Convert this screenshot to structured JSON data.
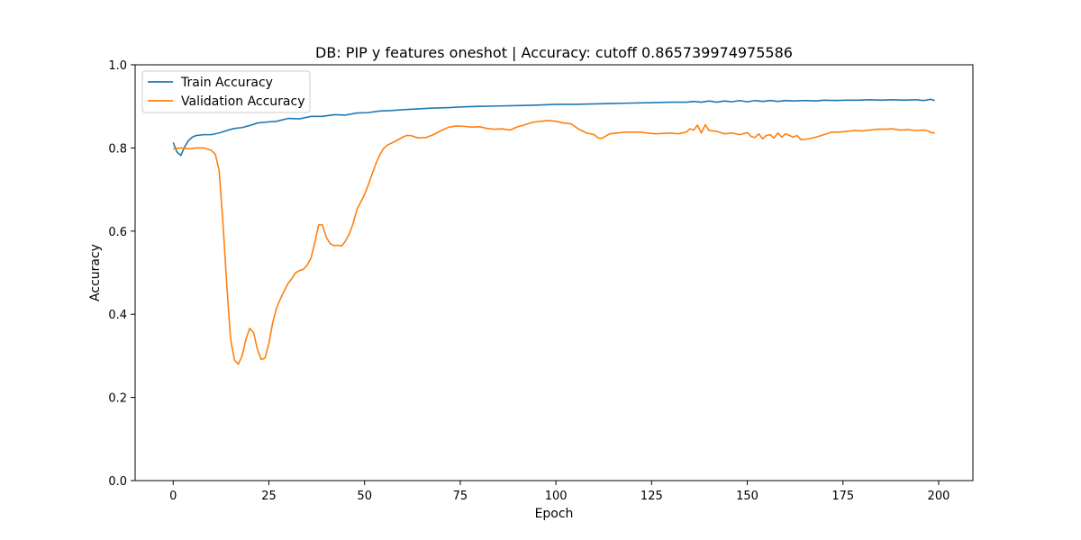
{
  "chart_data": {
    "type": "line",
    "title": "DB: PIP y features oneshot | Accuracy: cutoff 0.865739974975586",
    "xlabel": "Epoch",
    "ylabel": "Accuracy",
    "xlim": [
      -9.95,
      208.95
    ],
    "ylim": [
      0.0,
      1.0
    ],
    "xticks": [
      0,
      25,
      50,
      75,
      100,
      125,
      150,
      175,
      200
    ],
    "yticks": [
      0.0,
      0.2,
      0.4,
      0.6,
      0.8,
      1.0
    ],
    "grid": false,
    "legend_position": "top-left",
    "series": [
      {
        "name": "Train Accuracy",
        "color": "#1f77b4",
        "points": [
          [
            0,
            0.813
          ],
          [
            1,
            0.79
          ],
          [
            2,
            0.782
          ],
          [
            3,
            0.803
          ],
          [
            4,
            0.818
          ],
          [
            5,
            0.826
          ],
          [
            6,
            0.83
          ],
          [
            8,
            0.832
          ],
          [
            10,
            0.832
          ],
          [
            12,
            0.836
          ],
          [
            14,
            0.842
          ],
          [
            16,
            0.847
          ],
          [
            18,
            0.849
          ],
          [
            20,
            0.854
          ],
          [
            22,
            0.86
          ],
          [
            24,
            0.862
          ],
          [
            27,
            0.864
          ],
          [
            30,
            0.871
          ],
          [
            33,
            0.87
          ],
          [
            36,
            0.876
          ],
          [
            39,
            0.876
          ],
          [
            42,
            0.88
          ],
          [
            45,
            0.879
          ],
          [
            48,
            0.884
          ],
          [
            51,
            0.885
          ],
          [
            54,
            0.889
          ],
          [
            57,
            0.89
          ],
          [
            60,
            0.892
          ],
          [
            64,
            0.894
          ],
          [
            68,
            0.896
          ],
          [
            72,
            0.897
          ],
          [
            76,
            0.899
          ],
          [
            80,
            0.9
          ],
          [
            85,
            0.901
          ],
          [
            90,
            0.902
          ],
          [
            95,
            0.903
          ],
          [
            100,
            0.905
          ],
          [
            105,
            0.905
          ],
          [
            110,
            0.906
          ],
          [
            115,
            0.907
          ],
          [
            120,
            0.908
          ],
          [
            125,
            0.909
          ],
          [
            130,
            0.91
          ],
          [
            134,
            0.91
          ],
          [
            136,
            0.912
          ],
          [
            138,
            0.91
          ],
          [
            140,
            0.913
          ],
          [
            142,
            0.91
          ],
          [
            144,
            0.913
          ],
          [
            146,
            0.911
          ],
          [
            148,
            0.914
          ],
          [
            150,
            0.911
          ],
          [
            152,
            0.914
          ],
          [
            154,
            0.912
          ],
          [
            156,
            0.914
          ],
          [
            158,
            0.912
          ],
          [
            160,
            0.914
          ],
          [
            162,
            0.913
          ],
          [
            165,
            0.914
          ],
          [
            168,
            0.913
          ],
          [
            170,
            0.915
          ],
          [
            173,
            0.914
          ],
          [
            176,
            0.915
          ],
          [
            179,
            0.915
          ],
          [
            182,
            0.916
          ],
          [
            185,
            0.915
          ],
          [
            188,
            0.916
          ],
          [
            191,
            0.915
          ],
          [
            194,
            0.916
          ],
          [
            196,
            0.914
          ],
          [
            198,
            0.917
          ],
          [
            199,
            0.914
          ]
        ]
      },
      {
        "name": "Validation Accuracy",
        "color": "#ff7f0e",
        "points": [
          [
            0,
            0.798
          ],
          [
            2,
            0.8
          ],
          [
            4,
            0.798
          ],
          [
            6,
            0.8
          ],
          [
            8,
            0.8
          ],
          [
            10,
            0.794
          ],
          [
            11,
            0.785
          ],
          [
            12,
            0.745
          ],
          [
            13,
            0.62
          ],
          [
            14,
            0.47
          ],
          [
            15,
            0.34
          ],
          [
            16,
            0.29
          ],
          [
            17,
            0.28
          ],
          [
            18,
            0.3
          ],
          [
            19,
            0.34
          ],
          [
            20,
            0.366
          ],
          [
            21,
            0.356
          ],
          [
            22,
            0.316
          ],
          [
            23,
            0.291
          ],
          [
            24,
            0.295
          ],
          [
            25,
            0.33
          ],
          [
            26,
            0.38
          ],
          [
            27,
            0.415
          ],
          [
            28,
            0.437
          ],
          [
            29,
            0.456
          ],
          [
            30,
            0.474
          ],
          [
            31,
            0.486
          ],
          [
            32,
            0.5
          ],
          [
            33,
            0.505
          ],
          [
            34,
            0.508
          ],
          [
            35,
            0.518
          ],
          [
            36,
            0.535
          ],
          [
            37,
            0.572
          ],
          [
            38,
            0.615
          ],
          [
            39,
            0.615
          ],
          [
            40,
            0.585
          ],
          [
            41,
            0.57
          ],
          [
            42,
            0.565
          ],
          [
            43,
            0.566
          ],
          [
            44,
            0.564
          ],
          [
            45,
            0.576
          ],
          [
            46,
            0.593
          ],
          [
            47,
            0.618
          ],
          [
            48,
            0.652
          ],
          [
            49,
            0.67
          ],
          [
            50,
            0.688
          ],
          [
            51,
            0.712
          ],
          [
            52,
            0.738
          ],
          [
            53,
            0.763
          ],
          [
            54,
            0.784
          ],
          [
            55,
            0.799
          ],
          [
            56,
            0.807
          ],
          [
            58,
            0.816
          ],
          [
            60,
            0.826
          ],
          [
            61,
            0.83
          ],
          [
            62,
            0.83
          ],
          [
            64,
            0.824
          ],
          [
            66,
            0.825
          ],
          [
            68,
            0.832
          ],
          [
            70,
            0.842
          ],
          [
            72,
            0.85
          ],
          [
            74,
            0.853
          ],
          [
            76,
            0.852
          ],
          [
            78,
            0.85
          ],
          [
            80,
            0.851
          ],
          [
            82,
            0.847
          ],
          [
            84,
            0.845
          ],
          [
            86,
            0.846
          ],
          [
            88,
            0.843
          ],
          [
            90,
            0.851
          ],
          [
            92,
            0.856
          ],
          [
            94,
            0.862
          ],
          [
            96,
            0.864
          ],
          [
            98,
            0.866
          ],
          [
            100,
            0.864
          ],
          [
            102,
            0.86
          ],
          [
            104,
            0.858
          ],
          [
            106,
            0.845
          ],
          [
            108,
            0.836
          ],
          [
            110,
            0.832
          ],
          [
            111,
            0.824
          ],
          [
            112,
            0.823
          ],
          [
            114,
            0.834
          ],
          [
            116,
            0.836
          ],
          [
            118,
            0.838
          ],
          [
            120,
            0.838
          ],
          [
            122,
            0.838
          ],
          [
            124,
            0.836
          ],
          [
            126,
            0.834
          ],
          [
            128,
            0.835
          ],
          [
            130,
            0.836
          ],
          [
            132,
            0.834
          ],
          [
            134,
            0.838
          ],
          [
            135,
            0.846
          ],
          [
            136,
            0.843
          ],
          [
            137,
            0.855
          ],
          [
            138,
            0.836
          ],
          [
            139,
            0.856
          ],
          [
            140,
            0.842
          ],
          [
            142,
            0.84
          ],
          [
            144,
            0.834
          ],
          [
            146,
            0.836
          ],
          [
            148,
            0.832
          ],
          [
            150,
            0.837
          ],
          [
            151,
            0.828
          ],
          [
            152,
            0.825
          ],
          [
            153,
            0.834
          ],
          [
            154,
            0.822
          ],
          [
            155,
            0.83
          ],
          [
            156,
            0.832
          ],
          [
            157,
            0.824
          ],
          [
            158,
            0.836
          ],
          [
            159,
            0.826
          ],
          [
            160,
            0.834
          ],
          [
            161,
            0.83
          ],
          [
            162,
            0.826
          ],
          [
            163,
            0.83
          ],
          [
            164,
            0.82
          ],
          [
            166,
            0.822
          ],
          [
            168,
            0.826
          ],
          [
            170,
            0.832
          ],
          [
            172,
            0.838
          ],
          [
            174,
            0.838
          ],
          [
            176,
            0.84
          ],
          [
            178,
            0.842
          ],
          [
            180,
            0.841
          ],
          [
            182,
            0.843
          ],
          [
            184,
            0.845
          ],
          [
            186,
            0.845
          ],
          [
            188,
            0.846
          ],
          [
            190,
            0.843
          ],
          [
            192,
            0.844
          ],
          [
            194,
            0.842
          ],
          [
            196,
            0.843
          ],
          [
            197,
            0.842
          ],
          [
            198,
            0.837
          ],
          [
            199,
            0.836
          ]
        ]
      }
    ]
  }
}
